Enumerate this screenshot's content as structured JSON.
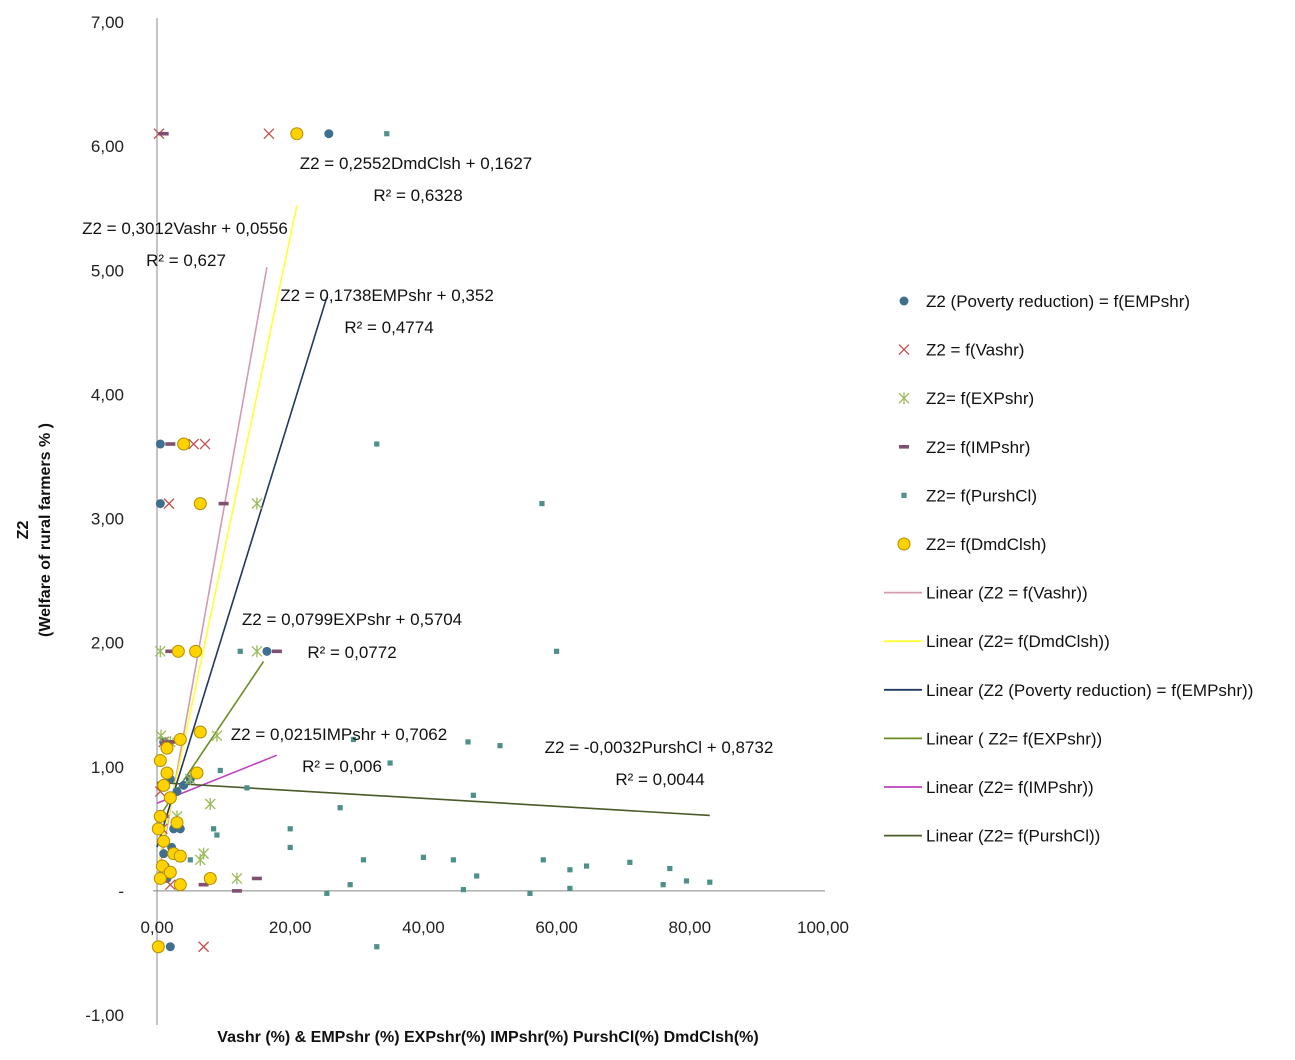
{
  "chart_data": {
    "type": "scatter",
    "title": "",
    "xlabel": "Vashr (%) & EMPshr  (%) EXPshr(%)  IMPshr(%)  PurshCl(%)  DmdClsh(%)",
    "ylabel_line1": "Z2",
    "ylabel_line2": "(Welfare of rural farmers % )",
    "xlim": [
      0,
      100
    ],
    "ylim": [
      -1,
      7
    ],
    "x_ticks": [
      "0,00",
      "20,00",
      "40,00",
      "60,00",
      "80,00",
      "100,00"
    ],
    "y_ticks": [
      "-1,00",
      "-",
      "1,00",
      "2,00",
      "3,00",
      "4,00",
      "5,00",
      "6,00",
      "7,00"
    ],
    "grid": false,
    "legend_position": "right",
    "series": [
      {
        "name": "Z2 (Poverty reduction) = f(EMPshr)",
        "marker": "circle",
        "color": "#3e6f8e",
        "points": [
          [
            0.5,
            3.6
          ],
          [
            0.5,
            3.12
          ],
          [
            25.8,
            6.1
          ],
          [
            16.5,
            1.93
          ],
          [
            2,
            -0.45
          ],
          [
            1,
            1.2
          ],
          [
            2,
            0.9
          ],
          [
            2.5,
            0.5
          ],
          [
            3,
            0.8
          ],
          [
            1,
            0.3
          ],
          [
            1.5,
            0.1
          ],
          [
            0.6,
            0.6
          ],
          [
            4,
            0.85
          ],
          [
            1.2,
            0.2
          ],
          [
            5,
            0.9
          ],
          [
            3.5,
            0.5
          ],
          [
            2.2,
            0.35
          ]
        ]
      },
      {
        "name": "Z2 = f(Vashr)",
        "marker": "x",
        "color": "#c0504d",
        "points": [
          [
            0.3,
            6.1
          ],
          [
            16.8,
            6.1
          ],
          [
            1.8,
            3.12
          ],
          [
            7.2,
            3.6
          ],
          [
            5.5,
            3.6
          ],
          [
            7,
            -0.45
          ],
          [
            1,
            1.2
          ],
          [
            0.5,
            0.8
          ],
          [
            2,
            0.05
          ],
          [
            0.8,
            0.5
          ]
        ]
      },
      {
        "name": " Z2= f(EXPshr)",
        "marker": "star",
        "color": "#9bbb59",
        "points": [
          [
            15,
            3.12
          ],
          [
            15,
            1.93
          ],
          [
            0.5,
            1.93
          ],
          [
            8,
            0.7
          ],
          [
            7,
            0.3
          ],
          [
            12,
            0.1
          ],
          [
            0.6,
            1.25
          ],
          [
            2,
            1.2
          ],
          [
            5,
            0.9
          ],
          [
            3,
            0.6
          ],
          [
            9,
            1.25
          ],
          [
            6.5,
            0.25
          ]
        ]
      },
      {
        "name": " Z2= f(IMPshr)",
        "marker": "dash",
        "color": "#7f5070",
        "points": [
          [
            1,
            6.1
          ],
          [
            2,
            3.6
          ],
          [
            10,
            3.12
          ],
          [
            2,
            1.93
          ],
          [
            18,
            1.93
          ],
          [
            15,
            0.1
          ],
          [
            12,
            0.0
          ],
          [
            7,
            0.05
          ],
          [
            1,
            0.6
          ],
          [
            2,
            1.2
          ]
        ]
      },
      {
        "name": " Z2= f(PurshCl)",
        "marker": "square",
        "color": "#4f8f8a",
        "points": [
          [
            34.5,
            6.1
          ],
          [
            33,
            3.6
          ],
          [
            57.8,
            3.12
          ],
          [
            60,
            1.93
          ],
          [
            12.5,
            1.93
          ],
          [
            29.5,
            1.22
          ],
          [
            35,
            1.03
          ],
          [
            46.7,
            1.2
          ],
          [
            51.5,
            1.17
          ],
          [
            47.5,
            0.77
          ],
          [
            9.5,
            0.97
          ],
          [
            13.5,
            0.83
          ],
          [
            27.5,
            0.67
          ],
          [
            8.5,
            0.5
          ],
          [
            9,
            0.45
          ],
          [
            20,
            0.5
          ],
          [
            20,
            0.35
          ],
          [
            31,
            0.25
          ],
          [
            40,
            0.27
          ],
          [
            44.5,
            0.25
          ],
          [
            58,
            0.25
          ],
          [
            62,
            0.17
          ],
          [
            64.5,
            0.2
          ],
          [
            71,
            0.23
          ],
          [
            77,
            0.18
          ],
          [
            79.5,
            0.08
          ],
          [
            83,
            0.07
          ],
          [
            76,
            0.05
          ],
          [
            62,
            0.02
          ],
          [
            56,
            -0.02
          ],
          [
            46,
            0.01
          ],
          [
            48,
            0.12
          ],
          [
            29,
            0.05
          ],
          [
            25.5,
            -0.02
          ],
          [
            33,
            -0.45
          ],
          [
            5,
            0.25
          ]
        ]
      },
      {
        "name": " Z2= f(DmdClsh)",
        "marker": "circle",
        "color": "#ffd200",
        "points": [
          [
            21,
            6.1
          ],
          [
            4,
            3.6
          ],
          [
            6.5,
            3.12
          ],
          [
            3.2,
            1.93
          ],
          [
            5.8,
            1.93
          ],
          [
            0.2,
            -0.45
          ],
          [
            6.5,
            1.28
          ],
          [
            3.5,
            1.22
          ],
          [
            0.5,
            1.05
          ],
          [
            1.5,
            0.95
          ],
          [
            1,
            0.85
          ],
          [
            2,
            0.75
          ],
          [
            0.5,
            0.6
          ],
          [
            3,
            0.55
          ],
          [
            0.2,
            0.5
          ],
          [
            1,
            0.4
          ],
          [
            2.5,
            0.3
          ],
          [
            3.5,
            0.28
          ],
          [
            0.8,
            0.2
          ],
          [
            2,
            0.15
          ],
          [
            8,
            0.1
          ],
          [
            3.5,
            0.05
          ],
          [
            0.5,
            0.1
          ],
          [
            6,
            0.95
          ],
          [
            1.5,
            1.15
          ]
        ]
      }
    ],
    "trendlines": [
      {
        "name": "Linear (Z2 = f(Vashr))",
        "color": "#d39ab2",
        "slope": 0.3012,
        "intercept": 0.0556,
        "x_range": [
          0,
          16.5
        ],
        "equation": "Z2 = 0,3012Vashr + 0,0556",
        "r2": "R² = 0,627"
      },
      {
        "name": "Linear (Z2= f(DmdClsh))",
        "color": "#ffff33",
        "slope": 0.2552,
        "intercept": 0.1627,
        "x_range": [
          0,
          21
        ],
        "equation": "Z2 = 0,2552DmdClsh + 0,1627",
        "r2": "R² = 0,6328"
      },
      {
        "name": "Linear (Z2 (Poverty reduction) = f(EMPshr))",
        "color": "#1f3864",
        "slope": 0.1738,
        "intercept": 0.352,
        "x_range": [
          0,
          25.5
        ],
        "equation": "Z2 = 0,1738EMPshr + 0,352",
        "r2": "R² = 0,4774"
      },
      {
        "name": "Linear ( Z2= f(EXPshr))",
        "color": "#6b8e23",
        "slope": 0.0799,
        "intercept": 0.5704,
        "x_range": [
          0,
          16
        ],
        "equation": "Z2 = 0,0799EXPshr + 0,5704",
        "r2": "R² = 0,0772"
      },
      {
        "name": "Linear (Z2= f(IMPshr))",
        "color": "#c040c0",
        "slope": 0.0215,
        "intercept": 0.7062,
        "x_range": [
          0,
          18
        ],
        "equation": "Z2 = 0,0215IMPshr + 0,7062",
        "r2": "R² = 0,006"
      },
      {
        "name": "Linear (Z2= f(PurshCl))",
        "color": "#4a5a2a",
        "slope": -0.0032,
        "intercept": 0.8732,
        "x_range": [
          0,
          83
        ],
        "equation": "Z2 = -0,0032PurshCl + 0,8732",
        "r2": "R² = 0,0044"
      }
    ]
  }
}
